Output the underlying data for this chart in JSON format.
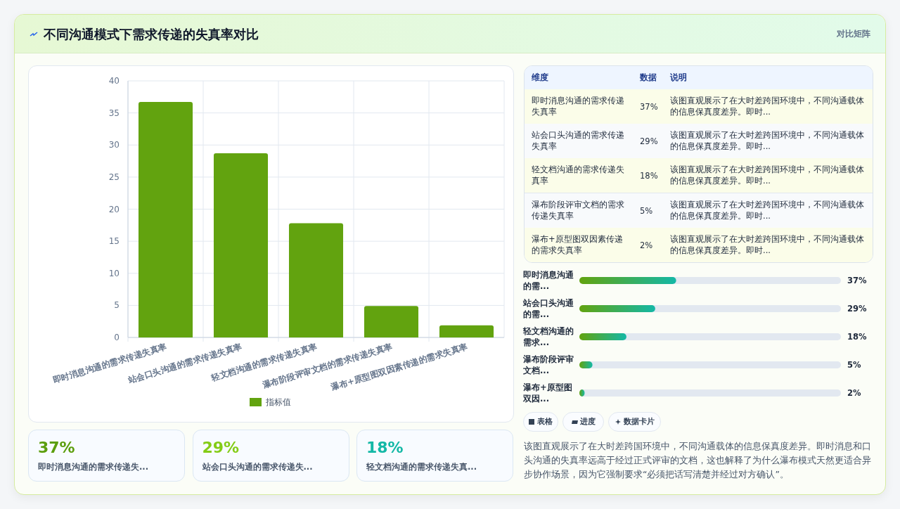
{
  "chart_data": [
    {
      "type": "bar",
      "title": "不同沟通模式下需求传递的失真率对比",
      "annotations": [
        "对比矩阵"
      ],
      "categories": [
        "即时消息沟通的需求传递失真率",
        "站会口头沟通的需求传递失真率",
        "轻文档沟通的需求传递失真率",
        "瀑布阶段评审文档的需求传递失真率",
        "瀑布+原型图双因素传递的需求失真率"
      ],
      "series": [
        {
          "name": "指标值",
          "color": "#62a30f",
          "values": [
            36.7,
            28.7,
            17.8,
            4.9,
            1.9
          ]
        }
      ],
      "ylim": [
        0,
        40
      ],
      "yticks": [
        0,
        5,
        10,
        15,
        20,
        25,
        30,
        35,
        40
      ],
      "grid": true,
      "legend": "bottom"
    },
    {
      "type": "other",
      "categories": [
        "即时消息沟通的需求传递失真率",
        "站会口头沟通的需求传递失真率",
        "轻文档沟通的需求传递失真率",
        "瀑布阶段评审文档的需求传递失真率",
        "瀑布+原型图双因素传递的需求失真率"
      ],
      "values": [
        37,
        29,
        18,
        5,
        2
      ],
      "value_labels": [
        "37%",
        "29%",
        "18%",
        "5%",
        "2%"
      ],
      "annotations": [
        "维度",
        "数据",
        "说明",
        "该图直观展示了在大时差跨国环境中，不同沟通载体的信息保真度差异。即时...",
        "该图直观展示了在大时差跨国环境中，不同沟通载体的信息保真度差异。即时...",
        "该图直观展示了在大时差跨国环境中，不同沟通载体的信息保真度差异。即时...",
        "该图直观展示了在大时差跨国环境中，不同沟通载体的信息保真度差异。即时...",
        "该图直观展示了在大时差跨国环境中，不同沟通载体的信息保真度差异。即时..."
      ]
    },
    {
      "type": "other",
      "categories": [
        "即时消息沟通的需...",
        "站会口头沟通的需...",
        "轻文档沟通的需求...",
        "瀑布阶段评审文档...",
        "瀑布+原型图双因..."
      ],
      "values": [
        37,
        29,
        18,
        5,
        2
      ],
      "value_labels": [
        "37%",
        "29%",
        "18%",
        "5%",
        "2%"
      ]
    },
    {
      "type": "other",
      "categories": [
        "即时消息沟通的需求传递失...",
        "站会口头沟通的需求传递失...",
        "轻文档沟通的需求传递失真..."
      ],
      "values": [
        37,
        29,
        18
      ],
      "value_labels": [
        "37%",
        "29%",
        "18%"
      ]
    },
    {
      "type": "other",
      "annotations": [
        "表格",
        "进度",
        "数据卡片",
        "该图直观展示了在大时差跨国环境中，不同沟通载体的信息保真度差异。即时消息和口头沟通的失真率远高于经过正式评审的文档，这也解释了为什么瀑布模式天然更适合异步协作场景，因为它强制要求“必须把话写清楚并经过对方确认”。"
      ]
    }
  ]
}
